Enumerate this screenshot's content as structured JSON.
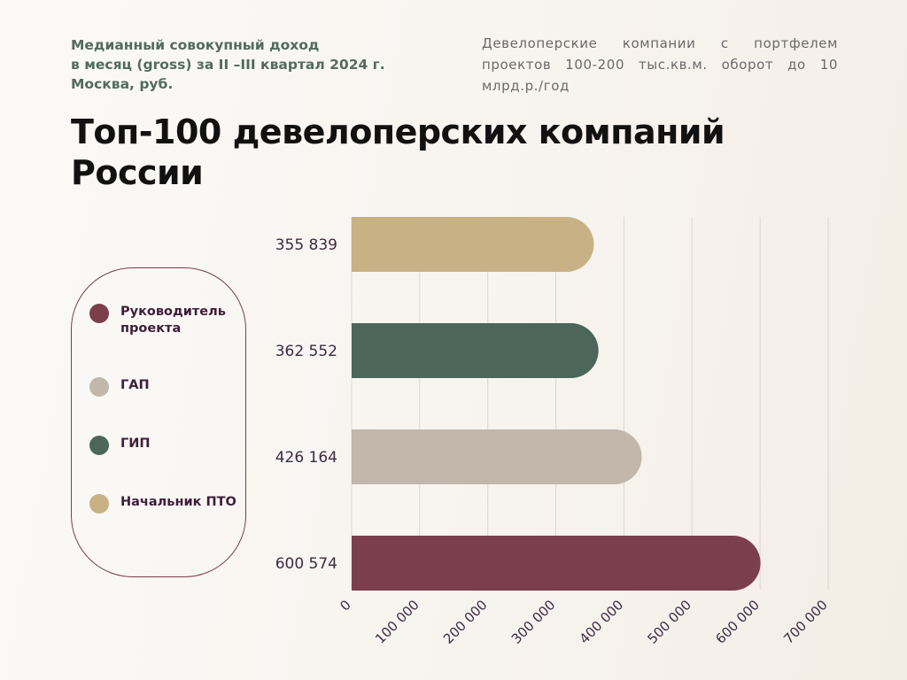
{
  "header": {
    "subtitle_lines": [
      "Медианный совокупный доход",
      "в месяц (gross) за II –III квартал  2024 г.",
      "Москва, руб."
    ],
    "description": "Девелоперские компании с портфелем проектов 100-200 тыс.кв.м. оборот до 10 млрд.р./год",
    "title_lines": [
      "Топ-100 девелоперских компаний",
      "России"
    ]
  },
  "legend": {
    "items": [
      {
        "label": "Руководитель проекта",
        "color": "#7b3f4b"
      },
      {
        "label": "ГАП",
        "color": "#c1b8ab"
      },
      {
        "label": "ГИП",
        "color": "#4c665c"
      },
      {
        "label": "Начальник ПТО",
        "color": "#c8b184"
      }
    ]
  },
  "chart_data": {
    "type": "bar",
    "orientation": "horizontal",
    "categories": [
      "Начальник ПТО",
      "ГИП",
      "ГАП",
      "Руководитель проекта"
    ],
    "values": [
      355839,
      362552,
      426164,
      600574
    ],
    "value_labels": [
      "355 839",
      "362 552",
      "426 164",
      "600 574"
    ],
    "colors": [
      "#c8b184",
      "#4c665c",
      "#c1b8ab",
      "#7b3f4b"
    ],
    "xlim": [
      0,
      700000
    ],
    "x_ticks": [
      0,
      100000,
      200000,
      300000,
      400000,
      500000,
      600000,
      700000
    ],
    "x_tick_labels": [
      "0",
      "100 000",
      "200 000",
      "300 000",
      "400 000",
      "500 000",
      "600 000",
      "700 000"
    ],
    "grid": "vertical",
    "legend_position": "left",
    "xlabel": "",
    "ylabel": ""
  }
}
